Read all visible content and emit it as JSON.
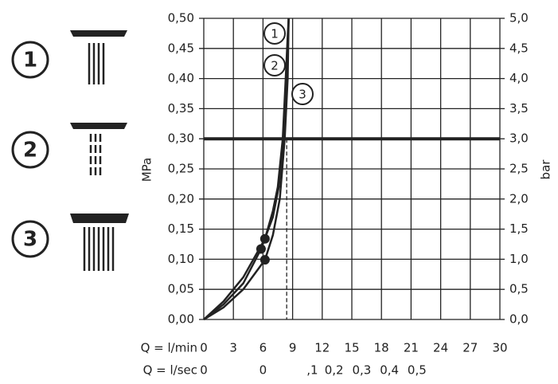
{
  "chart_data": {
    "type": "line",
    "xlabel": "Q = l/min",
    "x2label": "Q = l/sec",
    "ylabel": "MPa",
    "y2label": "bar",
    "xlim": [
      0,
      30
    ],
    "xticks": [
      0,
      3,
      6,
      9,
      12,
      15,
      18,
      21,
      24,
      27,
      30
    ],
    "x2ticks": [
      {
        "value": 0,
        "label": "0"
      },
      {
        "value": 6,
        "label": "0"
      },
      {
        "value": 11,
        "label": ",1"
      },
      {
        "value": 13.2,
        "label": "0,2"
      },
      {
        "value": 16,
        "label": "0,3"
      },
      {
        "value": 18.8,
        "label": "0,4"
      },
      {
        "value": 21.6,
        "label": "0,5"
      }
    ],
    "ylim": [
      0,
      0.5
    ],
    "yticks": [
      {
        "value": 0,
        "label": "0,00"
      },
      {
        "value": 0.05,
        "label": "0,05"
      },
      {
        "value": 0.1,
        "label": "0,10"
      },
      {
        "value": 0.15,
        "label": "0,15"
      },
      {
        "value": 0.2,
        "label": "0,20"
      },
      {
        "value": 0.25,
        "label": "0,25"
      },
      {
        "value": 0.3,
        "label": "0,30"
      },
      {
        "value": 0.35,
        "label": "0,35"
      },
      {
        "value": 0.4,
        "label": "0,40"
      },
      {
        "value": 0.45,
        "label": "0,45"
      },
      {
        "value": 0.5,
        "label": "0,50"
      }
    ],
    "y2lim": [
      0,
      5
    ],
    "y2ticks": [
      {
        "value": 0,
        "label": "0,0"
      },
      {
        "value": 0.5,
        "label": "0,5"
      },
      {
        "value": 1,
        "label": "1,0"
      },
      {
        "value": 1.5,
        "label": "1,5"
      },
      {
        "value": 2,
        "label": "2,0"
      },
      {
        "value": 2.5,
        "label": "2,5"
      },
      {
        "value": 3,
        "label": "3,0"
      },
      {
        "value": 3.5,
        "label": "3,5"
      },
      {
        "value": 4,
        "label": "4,0"
      },
      {
        "value": 4.5,
        "label": "4,5"
      },
      {
        "value": 5,
        "label": "5,0"
      }
    ],
    "grid": true,
    "reference_y": 0.3,
    "reference_x": 8.4,
    "color": "#222222",
    "series": [
      {
        "name": "1",
        "x": [
          0,
          2,
          4,
          6.2,
          7,
          7.5,
          8,
          8.3,
          8.5,
          8.6
        ],
        "y": [
          0,
          0.03,
          0.07,
          0.134,
          0.18,
          0.22,
          0.3,
          0.4,
          0.47,
          0.5
        ],
        "marker": {
          "x": 6.2,
          "y": 0.134
        }
      },
      {
        "name": "2",
        "x": [
          0,
          2,
          4,
          5.8,
          7,
          7.6,
          8.1,
          8.4,
          8.6
        ],
        "y": [
          0,
          0.025,
          0.06,
          0.117,
          0.17,
          0.22,
          0.3,
          0.4,
          0.5
        ],
        "marker": {
          "x": 5.8,
          "y": 0.117
        }
      },
      {
        "name": "3",
        "x": [
          0,
          2,
          4,
          6.2,
          7,
          7.7,
          8.2,
          8.5,
          8.6
        ],
        "y": [
          0,
          0.02,
          0.05,
          0.099,
          0.14,
          0.2,
          0.3,
          0.4,
          0.5
        ],
        "marker": {
          "x": 6.2,
          "y": 0.099
        }
      }
    ]
  }
}
